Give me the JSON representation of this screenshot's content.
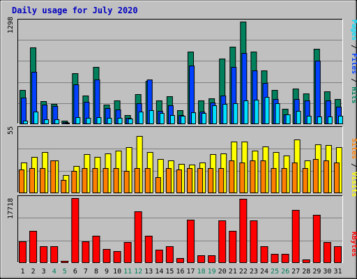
{
  "title": "Daily usage for July 2020",
  "colors": {
    "frame_bg": "#c0c0c0",
    "hits": "#00805c",
    "files": "#0040ff",
    "pages": "#00e0ff",
    "visits": "#ffff00",
    "sites": "#ff8000",
    "kbytes": "#ff0000",
    "weekday_label": "#000000",
    "weekend_label": "#00805c"
  },
  "legend": {
    "pages": "Pages",
    "files": "Files",
    "hits": "Hits",
    "sites": "Sites",
    "visits": "Visits",
    "kbytes": "KBytes",
    "sep": "/"
  },
  "chart_data": [
    {
      "type": "bar",
      "title": "Daily usage for July 2020",
      "ymax_label": "1298",
      "ylim": [
        0,
        1298
      ],
      "categories": [
        "1",
        "2",
        "3",
        "4",
        "5",
        "6",
        "7",
        "8",
        "9",
        "10",
        "11",
        "12",
        "13",
        "14",
        "15",
        "16",
        "17",
        "18",
        "19",
        "20",
        "21",
        "22",
        "23",
        "24",
        "25",
        "26",
        "27",
        "28",
        "29",
        "30",
        "31"
      ],
      "weekend_days": [
        "4",
        "5",
        "11",
        "12",
        "18",
        "19",
        "25",
        "26"
      ],
      "series": [
        {
          "name": "Hits",
          "values": [
            430,
            965,
            285,
            250,
            40,
            640,
            360,
            720,
            240,
            290,
            105,
            370,
            540,
            290,
            350,
            170,
            915,
            290,
            320,
            825,
            980,
            1298,
            920,
            680,
            430,
            185,
            445,
            380,
            950,
            410,
            310
          ]
        },
        {
          "name": "Files",
          "values": [
            330,
            660,
            240,
            225,
            20,
            500,
            280,
            560,
            200,
            180,
            70,
            260,
            560,
            160,
            235,
            110,
            740,
            150,
            270,
            360,
            720,
            900,
            680,
            520,
            310,
            120,
            310,
            290,
            800,
            290,
            215
          ]
        },
        {
          "name": "Pages",
          "values": [
            40,
            150,
            55,
            50,
            10,
            80,
            75,
            80,
            70,
            70,
            65,
            150,
            170,
            130,
            110,
            95,
            140,
            130,
            230,
            250,
            260,
            290,
            300,
            340,
            260,
            120,
            160,
            100,
            90,
            90,
            95
          ]
        }
      ]
    },
    {
      "type": "bar",
      "ymax_label": "55",
      "ylim": [
        0,
        55
      ],
      "categories": [
        "1",
        "2",
        "3",
        "4",
        "5",
        "6",
        "7",
        "8",
        "9",
        "10",
        "11",
        "12",
        "13",
        "14",
        "15",
        "16",
        "17",
        "18",
        "19",
        "20",
        "21",
        "22",
        "23",
        "24",
        "25",
        "26",
        "27",
        "28",
        "29",
        "30",
        "31"
      ],
      "series": [
        {
          "name": "Visits",
          "values": [
            26,
            31,
            35,
            28,
            15,
            23,
            33,
            31,
            34,
            36,
            39,
            49,
            35,
            29,
            28,
            25,
            24,
            26,
            33,
            34,
            44,
            44,
            36,
            40,
            35,
            32,
            46,
            28,
            42,
            41,
            39
          ]
        },
        {
          "name": "Sites",
          "values": [
            20,
            21,
            21,
            28,
            11,
            19,
            21,
            21,
            21,
            21,
            19,
            21,
            21,
            13,
            21,
            20,
            21,
            21,
            21,
            21,
            28,
            26,
            28,
            28,
            21,
            21,
            26,
            21,
            29,
            28,
            26
          ]
        }
      ]
    },
    {
      "type": "bar",
      "ymax_label": "17718",
      "ylim": [
        0,
        17718
      ],
      "categories": [
        "1",
        "2",
        "3",
        "4",
        "5",
        "6",
        "7",
        "8",
        "9",
        "10",
        "11",
        "12",
        "13",
        "14",
        "15",
        "16",
        "17",
        "18",
        "19",
        "20",
        "21",
        "22",
        "23",
        "24",
        "25",
        "26",
        "27",
        "28",
        "29",
        "30",
        "31"
      ],
      "series": [
        {
          "name": "KBytes",
          "values": [
            5800,
            8700,
            4400,
            4400,
            300,
            17718,
            5800,
            7300,
            3700,
            3100,
            5500,
            14000,
            7400,
            3500,
            4400,
            1200,
            11800,
            2000,
            2000,
            11600,
            8700,
            17600,
            11500,
            4400,
            2400,
            2400,
            14400,
            800,
            13000,
            5500,
            4400
          ]
        }
      ]
    }
  ]
}
